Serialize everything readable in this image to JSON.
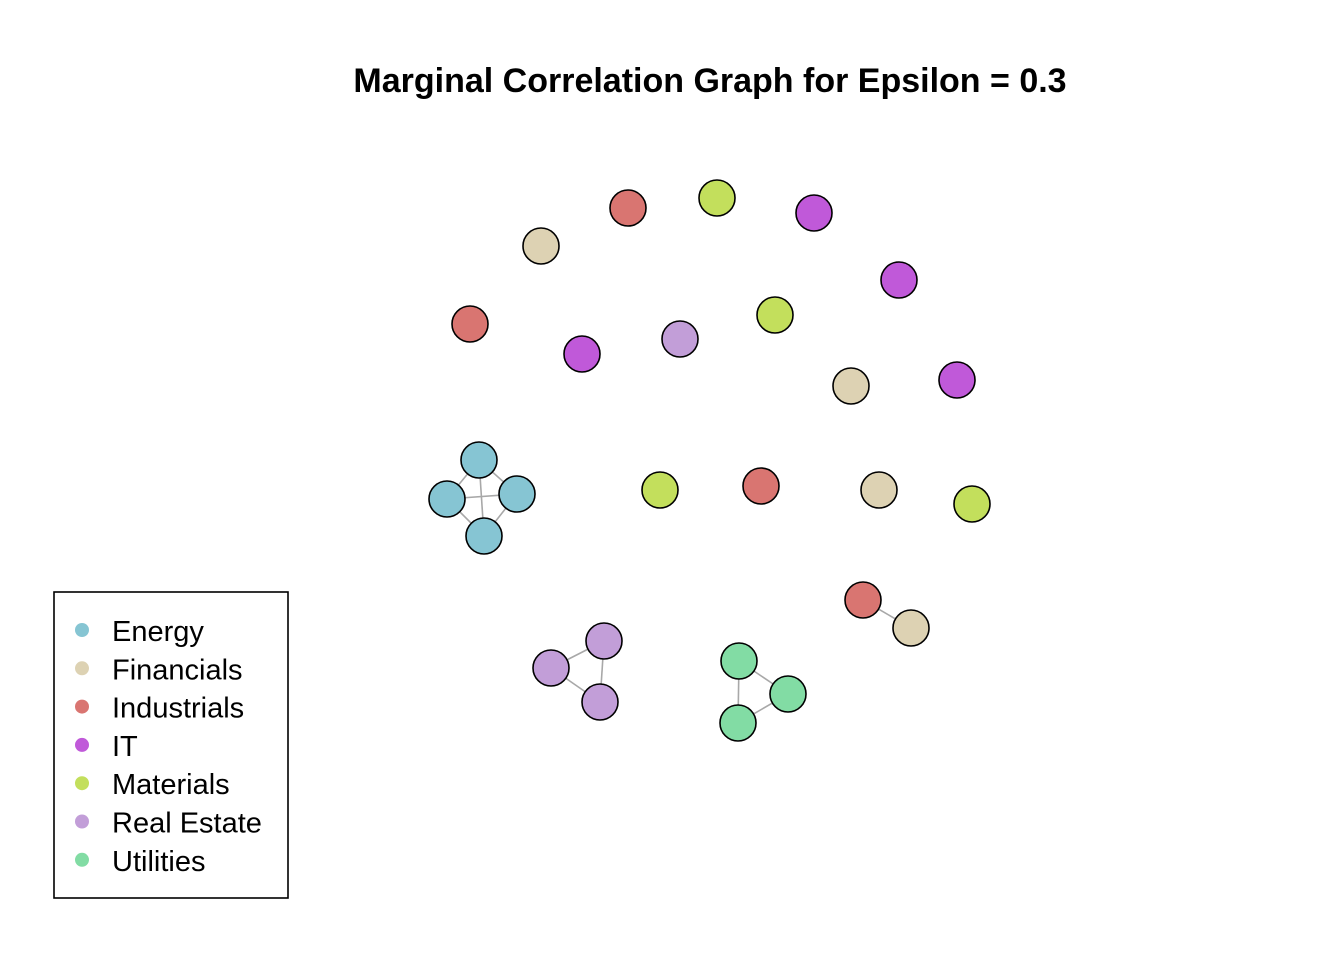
{
  "title": "Marginal Correlation Graph for Epsilon =  0.3",
  "categories": [
    {
      "name": "Energy",
      "color": "#86C5D3"
    },
    {
      "name": "Financials",
      "color": "#DDD2B3"
    },
    {
      "name": "Industrials",
      "color": "#D97571"
    },
    {
      "name": "IT",
      "color": "#C059D9"
    },
    {
      "name": "Materials",
      "color": "#C3DF5C"
    },
    {
      "name": "Real Estate",
      "color": "#C29ED8"
    },
    {
      "name": "Utilities",
      "color": "#82DCA4"
    }
  ],
  "nodes": [
    {
      "id": "n1",
      "category": "Industrials"
    },
    {
      "id": "n2",
      "category": "Materials"
    },
    {
      "id": "n3",
      "category": "IT"
    },
    {
      "id": "n4",
      "category": "Financials"
    },
    {
      "id": "n5",
      "category": "IT"
    },
    {
      "id": "n6",
      "category": "Industrials"
    },
    {
      "id": "n7",
      "category": "Materials"
    },
    {
      "id": "n8",
      "category": "Real Estate"
    },
    {
      "id": "n9",
      "category": "IT"
    },
    {
      "id": "n10",
      "category": "Financials"
    },
    {
      "id": "n11",
      "category": "IT"
    },
    {
      "id": "e1",
      "category": "Energy"
    },
    {
      "id": "e2",
      "category": "Energy"
    },
    {
      "id": "e3",
      "category": "Energy"
    },
    {
      "id": "e4",
      "category": "Energy"
    },
    {
      "id": "n12",
      "category": "Materials"
    },
    {
      "id": "n13",
      "category": "Industrials"
    },
    {
      "id": "n14",
      "category": "Financials"
    },
    {
      "id": "n15",
      "category": "Materials"
    },
    {
      "id": "p1",
      "category": "Industrials"
    },
    {
      "id": "p2",
      "category": "Financials"
    },
    {
      "id": "r1",
      "category": "Real Estate"
    },
    {
      "id": "r2",
      "category": "Real Estate"
    },
    {
      "id": "r3",
      "category": "Real Estate"
    },
    {
      "id": "u1",
      "category": "Utilities"
    },
    {
      "id": "u2",
      "category": "Utilities"
    },
    {
      "id": "u3",
      "category": "Utilities"
    }
  ],
  "edges": [
    [
      "e1",
      "e2"
    ],
    [
      "e1",
      "e3"
    ],
    [
      "e1",
      "e4"
    ],
    [
      "e2",
      "e3"
    ],
    [
      "e2",
      "e4"
    ],
    [
      "e3",
      "e4"
    ],
    [
      "p1",
      "p2"
    ],
    [
      "r1",
      "r2"
    ],
    [
      "r1",
      "r3"
    ],
    [
      "r2",
      "r3"
    ],
    [
      "u1",
      "u2"
    ],
    [
      "u1",
      "u3"
    ],
    [
      "u2",
      "u3"
    ]
  ]
}
